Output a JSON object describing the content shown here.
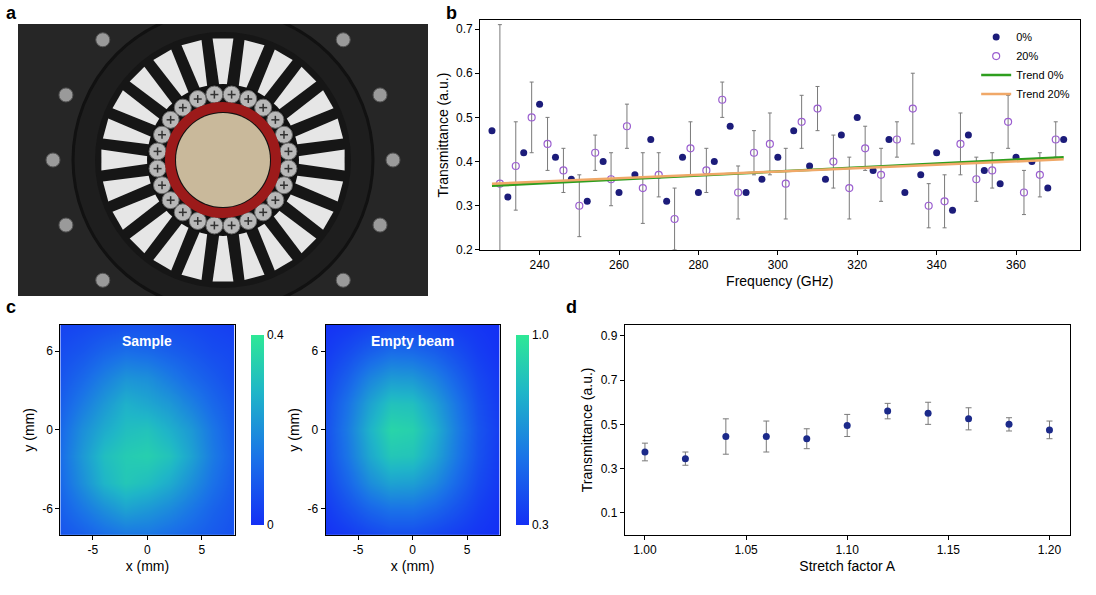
{
  "chart_data": [
    {
      "type": "photo",
      "label": "a"
    },
    {
      "type": "scatter",
      "label": "b",
      "xlabel": "Frequency (GHz)",
      "ylabel": "Transmittance (a.u.)",
      "xlim": [
        225,
        376
      ],
      "xticks": [
        240,
        260,
        280,
        300,
        320,
        340,
        360
      ],
      "ylim": [
        0.2,
        0.72
      ],
      "yticks": [
        0.2,
        0.3,
        0.4,
        0.5,
        0.6,
        0.7
      ],
      "legend": "upper right",
      "series": [
        {
          "name": "0%",
          "type": "scatter",
          "marker": "circle",
          "color": "#1c1c7a",
          "x": [
            228,
            232,
            236,
            240,
            244,
            248,
            252,
            256,
            260,
            264,
            268,
            272,
            276,
            280,
            284,
            288,
            292,
            296,
            300,
            304,
            308,
            312,
            316,
            320,
            324,
            328,
            332,
            336,
            340,
            344,
            348,
            352,
            356,
            360,
            364,
            368,
            372
          ],
          "values": [
            0.47,
            0.32,
            0.42,
            0.53,
            0.41,
            0.36,
            0.31,
            0.4,
            0.33,
            0.37,
            0.45,
            0.31,
            0.41,
            0.33,
            0.4,
            0.48,
            0.33,
            0.36,
            0.41,
            0.47,
            0.39,
            0.36,
            0.46,
            0.5,
            0.38,
            0.45,
            0.33,
            0.37,
            0.42,
            0.29,
            0.46,
            0.38,
            0.35,
            0.41,
            0.4,
            0.34,
            0.45
          ]
        },
        {
          "name": "20%",
          "type": "scatter",
          "marker": "circle-open",
          "color": "#9b5fd0",
          "x": [
            230,
            234,
            238,
            242,
            246,
            250,
            254,
            258,
            262,
            266,
            270,
            274,
            278,
            282,
            286,
            290,
            294,
            298,
            302,
            306,
            310,
            314,
            318,
            322,
            326,
            330,
            334,
            338,
            342,
            346,
            350,
            354,
            358,
            362,
            366,
            370
          ],
          "values": [
            0.35,
            0.39,
            0.5,
            0.44,
            0.38,
            0.3,
            0.42,
            0.36,
            0.48,
            0.34,
            0.37,
            0.27,
            0.43,
            0.38,
            0.54,
            0.33,
            0.42,
            0.44,
            0.35,
            0.49,
            0.52,
            0.4,
            0.34,
            0.43,
            0.37,
            0.45,
            0.52,
            0.3,
            0.31,
            0.44,
            0.36,
            0.38,
            0.49,
            0.33,
            0.37,
            0.45
          ],
          "errors": [
            0.36,
            0.1,
            0.08,
            0.06,
            0.05,
            0.07,
            0.04,
            0.06,
            0.05,
            0.08,
            0.05,
            0.07,
            0.06,
            0.05,
            0.04,
            0.06,
            0.05,
            0.07,
            0.08,
            0.06,
            0.05,
            0.06,
            0.07,
            0.05,
            0.06,
            0.04,
            0.08,
            0.05,
            0.06,
            0.07,
            0.05,
            0.04,
            0.06,
            0.05,
            0.05,
            0.04
          ]
        },
        {
          "name": "Trend 0%",
          "type": "line",
          "line_style": "solid",
          "color": "#2e9e1e",
          "x": [
            228,
            372
          ],
          "values": [
            0.345,
            0.41
          ]
        },
        {
          "name": "Trend 20%",
          "type": "line",
          "line_style": "solid",
          "color": "#f0a868",
          "x": [
            228,
            372
          ],
          "values": [
            0.35,
            0.405
          ]
        }
      ]
    },
    {
      "type": "heatmap",
      "label": "c",
      "xlabel": "x (mm)",
      "ylabel": "y (mm)",
      "xlim": [
        -8,
        8
      ],
      "xticks": [
        -5,
        0,
        5
      ],
      "ylim": [
        -8,
        8
      ],
      "yticks": [
        -6,
        0,
        6
      ],
      "x": [
        -8,
        -6,
        -4,
        -2,
        0,
        2,
        4,
        6,
        8
      ],
      "y": [
        -8,
        -6,
        -4,
        -2,
        0,
        2,
        4,
        6,
        8
      ],
      "panels": [
        {
          "title": "Sample",
          "colorbar_range": [
            0,
            0.4
          ],
          "colorbar_ticks": [
            0,
            0.4
          ],
          "z": [
            [
              0.08,
              0.1,
              0.13,
              0.15,
              0.15,
              0.13,
              0.11,
              0.09,
              0.07
            ],
            [
              0.1,
              0.15,
              0.2,
              0.24,
              0.22,
              0.19,
              0.15,
              0.11,
              0.08
            ],
            [
              0.12,
              0.2,
              0.28,
              0.32,
              0.3,
              0.26,
              0.2,
              0.14,
              0.09
            ],
            [
              0.13,
              0.22,
              0.3,
              0.33,
              0.34,
              0.31,
              0.24,
              0.16,
              0.1
            ],
            [
              0.12,
              0.2,
              0.26,
              0.3,
              0.31,
              0.27,
              0.22,
              0.15,
              0.09
            ],
            [
              0.1,
              0.16,
              0.22,
              0.27,
              0.25,
              0.22,
              0.17,
              0.12,
              0.08
            ],
            [
              0.08,
              0.12,
              0.17,
              0.21,
              0.2,
              0.16,
              0.12,
              0.09,
              0.06
            ],
            [
              0.06,
              0.08,
              0.11,
              0.13,
              0.12,
              0.1,
              0.08,
              0.06,
              0.05
            ],
            [
              0.04,
              0.05,
              0.06,
              0.07,
              0.07,
              0.06,
              0.05,
              0.04,
              0.03
            ]
          ]
        },
        {
          "title": "Empty beam",
          "colorbar_range": [
            0.3,
            1.0
          ],
          "colorbar_ticks": [
            0.3,
            {
              "value": 1.0,
              "label": "1.0"
            }
          ],
          "z": [
            [
              0.31,
              0.34,
              0.38,
              0.41,
              0.41,
              0.38,
              0.35,
              0.32,
              0.3
            ],
            [
              0.34,
              0.42,
              0.5,
              0.55,
              0.55,
              0.5,
              0.43,
              0.36,
              0.31
            ],
            [
              0.38,
              0.5,
              0.64,
              0.72,
              0.71,
              0.63,
              0.51,
              0.4,
              0.33
            ],
            [
              0.41,
              0.56,
              0.74,
              0.86,
              0.85,
              0.73,
              0.57,
              0.43,
              0.34
            ],
            [
              0.42,
              0.58,
              0.78,
              0.92,
              0.9,
              0.77,
              0.59,
              0.44,
              0.35
            ],
            [
              0.41,
              0.55,
              0.72,
              0.84,
              0.83,
              0.71,
              0.56,
              0.42,
              0.34
            ],
            [
              0.38,
              0.48,
              0.61,
              0.69,
              0.68,
              0.6,
              0.49,
              0.39,
              0.33
            ],
            [
              0.34,
              0.4,
              0.47,
              0.52,
              0.51,
              0.47,
              0.41,
              0.35,
              0.31
            ],
            [
              0.31,
              0.33,
              0.36,
              0.38,
              0.38,
              0.36,
              0.34,
              0.32,
              0.3
            ]
          ]
        }
      ]
    },
    {
      "type": "scatter",
      "label": "d",
      "xlabel": "Stretch factor A",
      "ylabel": "Transmittance (a.u.)",
      "xlim": [
        0.99,
        1.21
      ],
      "xticks": [
        {
          "value": 1.0,
          "label": "1.00"
        },
        {
          "value": 1.05,
          "label": "1.05"
        },
        {
          "value": 1.1,
          "label": "1.10"
        },
        {
          "value": 1.15,
          "label": "1.15"
        },
        {
          "value": 1.2,
          "label": "1.20"
        }
      ],
      "ylim": [
        0.0,
        0.95
      ],
      "yticks": [
        0.1,
        0.3,
        0.5,
        0.7,
        0.9
      ],
      "marker": "circle",
      "color": "#1c2a8a",
      "x": [
        1.0,
        1.02,
        1.04,
        1.06,
        1.08,
        1.1,
        1.12,
        1.14,
        1.16,
        1.18,
        1.2
      ],
      "values": [
        0.375,
        0.345,
        0.445,
        0.445,
        0.435,
        0.495,
        0.56,
        0.55,
        0.525,
        0.5,
        0.475
      ],
      "errors": [
        0.04,
        0.03,
        0.08,
        0.07,
        0.045,
        0.05,
        0.035,
        0.05,
        0.05,
        0.03,
        0.04
      ]
    }
  ]
}
